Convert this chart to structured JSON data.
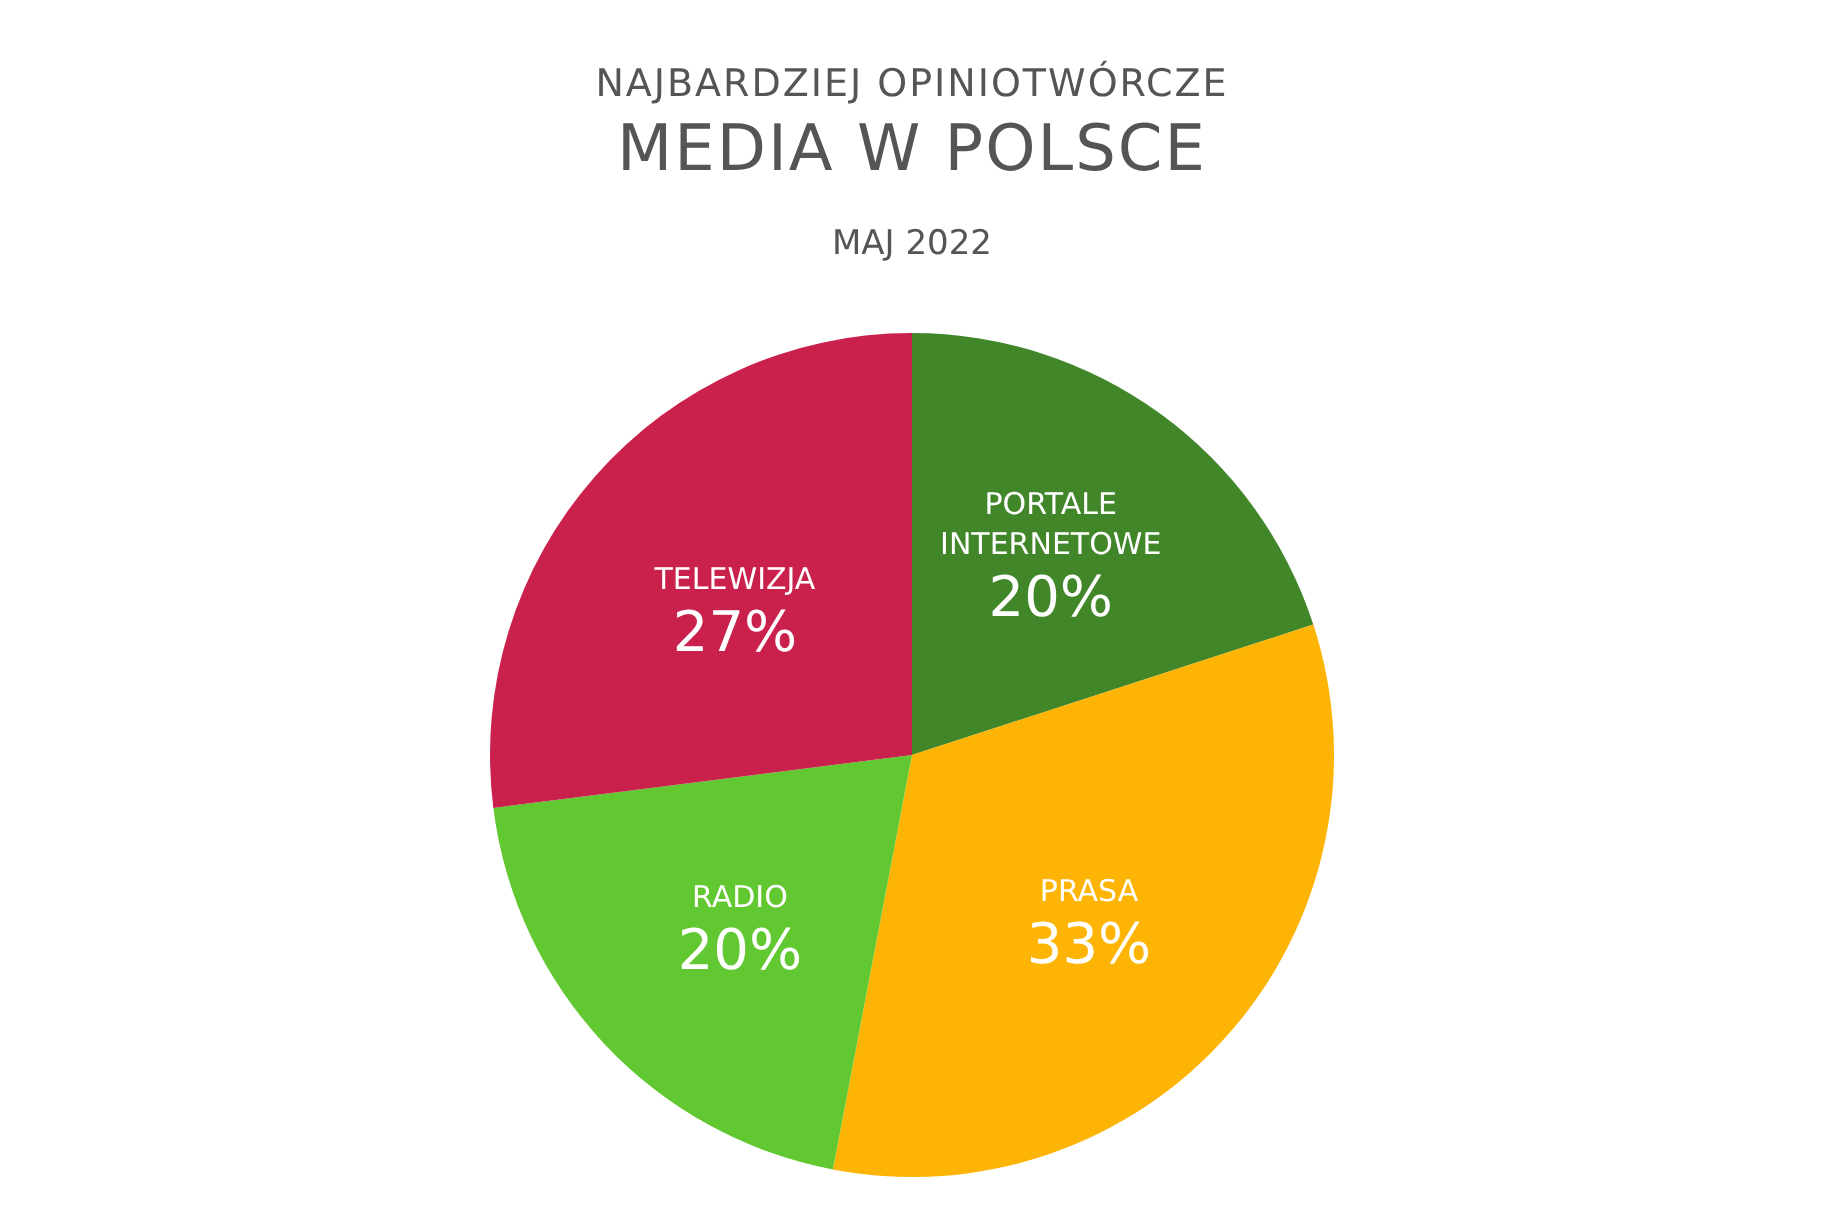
{
  "chart_data": {
    "type": "pie",
    "title": "NAJBARDZIEJ OPINIOTWÓRCZE\nMEDIA W POLSCE",
    "subtitle": "MAJ 2022",
    "categories": [
      "PORTALE INTERNETOWE",
      "PRASA",
      "RADIO",
      "TELEWIZJA"
    ],
    "values": [
      20,
      33,
      20,
      27
    ],
    "value_labels": [
      "20%",
      "33%",
      "20%",
      "27%"
    ],
    "colors": [
      "#42862a",
      "#fdb405",
      "#62c832",
      "#c9214b"
    ]
  }
}
